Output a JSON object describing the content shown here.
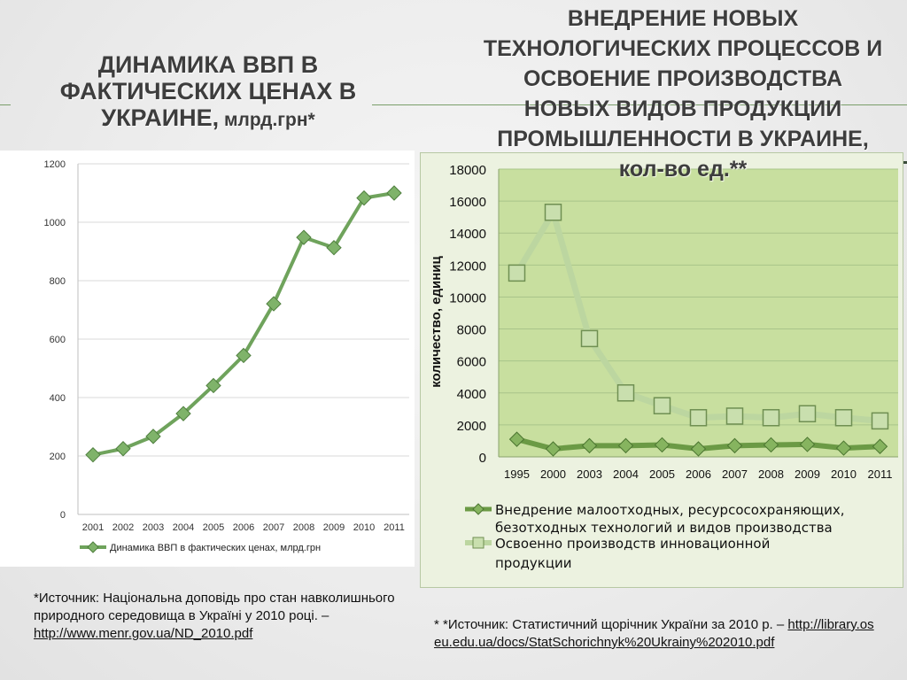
{
  "titles": {
    "left_main": "ДИНАМИКА ВВП В ФАКТИЧЕСКИХ ЦЕНАХ В УКРАИНЕ,",
    "left_unit": " млрд.грн*",
    "right_main": "ВНЕДРЕНИЕ НОВЫХ ТЕХНОЛОГИЧЕСКИХ ПРОЦЕССОВ И ОСВОЕНИЕ ПРОИЗВОДСТВА НОВЫХ ВИДОВ ПРОДУКЦИИ ПРОМЫШЛЕННОСТИ В УКРАИНЕ,",
    "right_unit": " кол-во ед.**"
  },
  "colors": {
    "gdp_line": "#6fa35c",
    "gdp_marker": "#7fb36a",
    "series1": "#6b9a45",
    "series2": "#bcd6a0",
    "plot_bg": "#c8df9f",
    "grid": "#a9c48a"
  },
  "chart_data": [
    {
      "type": "line",
      "categories": [
        "2001",
        "2002",
        "2003",
        "2004",
        "2005",
        "2006",
        "2007",
        "2008",
        "2009",
        "2010",
        "2011"
      ],
      "series": [
        {
          "name": "Динамика ВВП в фактических ценах, млрд.грн",
          "values": [
            204,
            225,
            267,
            345,
            441,
            544,
            721,
            948,
            913,
            1083,
            1100
          ]
        }
      ],
      "ylim": [
        0,
        1200
      ],
      "yticks": [
        0,
        200,
        400,
        600,
        800,
        1000,
        1200
      ],
      "grid": true,
      "legend": "bottom"
    },
    {
      "type": "line",
      "categories": [
        "1995",
        "2000",
        "2003",
        "2004",
        "2005",
        "2006",
        "2007",
        "2008",
        "2009",
        "2010",
        "2011"
      ],
      "series": [
        {
          "name": "Внедрение малоотходных, ресурсосохраняющих, безотходных технологий и видов производства",
          "values": [
            1100,
            500,
            700,
            700,
            750,
            500,
            700,
            750,
            780,
            550,
            650
          ]
        },
        {
          "name": "Освоенно производств инновационной продукции",
          "values": [
            11500,
            15300,
            7400,
            4000,
            3200,
            2450,
            2550,
            2450,
            2700,
            2450,
            2250
          ]
        }
      ],
      "ylabel": "количество, единиц",
      "ylim": [
        0,
        18000
      ],
      "yticks": [
        0,
        2000,
        4000,
        6000,
        8000,
        10000,
        12000,
        14000,
        16000,
        18000
      ],
      "grid": true,
      "legend": "bottom"
    }
  ],
  "sources": {
    "left_text": "*Источник: Національна доповідь про стан навколишнього природного середовища в Україні у 2010 році. – ",
    "left_link": "http://www.menr.gov.ua/ND_2010.pdf",
    "right_text": "* *Источник: Статистичний щорічник України за 2010 р. – ",
    "right_link": "http://library.oseu.edu.ua/docs/StatSchorichnyk%20Ukrainy%202010.pdf"
  }
}
